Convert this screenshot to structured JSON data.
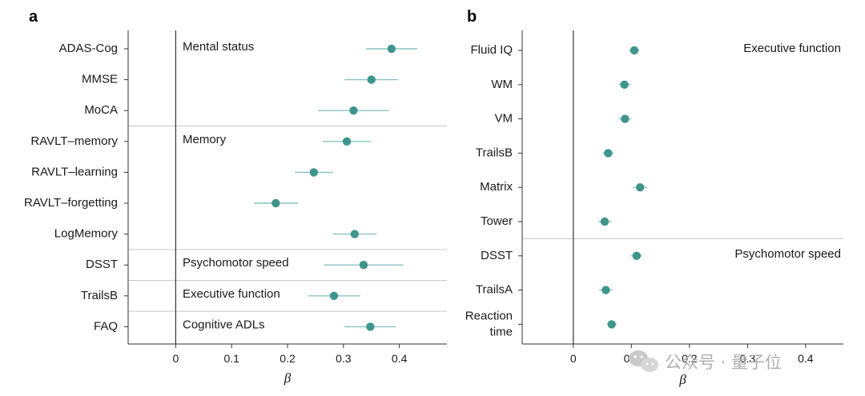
{
  "chart_data": [
    {
      "panel": "a",
      "type": "forest",
      "xlabel": "β",
      "xlim": [
        -0.085,
        0.485
      ],
      "xticks": [
        0,
        0.1,
        0.2,
        0.3,
        0.4
      ],
      "xtick_labels": [
        "0",
        "0.1",
        "0.2",
        "0.3",
        "0.4"
      ],
      "colors": {
        "point": "#3f958c",
        "ci": "#8cc4be",
        "axis": "#333333",
        "divider": "#c8c8c8"
      },
      "groups": [
        {
          "name": "Mental status",
          "rows": [
            0,
            1,
            2
          ]
        },
        {
          "name": "Memory",
          "rows": [
            3,
            4,
            5,
            6
          ]
        },
        {
          "name": "Psychomotor speed",
          "rows": [
            7
          ]
        },
        {
          "name": "Executive function",
          "rows": [
            8
          ]
        },
        {
          "name": "Cognitive ADLs",
          "rows": [
            9
          ]
        }
      ],
      "items": [
        {
          "label": "ADAS-Cog",
          "beta": 0.386,
          "low": 0.34,
          "high": 0.432
        },
        {
          "label": "MMSE",
          "beta": 0.35,
          "low": 0.302,
          "high": 0.398
        },
        {
          "label": "MoCA",
          "beta": 0.318,
          "low": 0.255,
          "high": 0.381
        },
        {
          "label": "RAVLT–memory",
          "beta": 0.306,
          "low": 0.263,
          "high": 0.349
        },
        {
          "label": "RAVLT–learning",
          "beta": 0.247,
          "low": 0.213,
          "high": 0.282
        },
        {
          "label": "RAVLT–forgetting",
          "beta": 0.179,
          "low": 0.14,
          "high": 0.219
        },
        {
          "label": "LogMemory",
          "beta": 0.32,
          "low": 0.281,
          "high": 0.359
        },
        {
          "label": "DSST",
          "beta": 0.336,
          "low": 0.265,
          "high": 0.407
        },
        {
          "label": "TrailsB",
          "beta": 0.283,
          "low": 0.237,
          "high": 0.33
        },
        {
          "label": "FAQ",
          "beta": 0.348,
          "low": 0.302,
          "high": 0.394
        }
      ]
    },
    {
      "panel": "b",
      "type": "forest",
      "xlabel": "β",
      "xlim": [
        -0.088,
        0.465
      ],
      "xticks": [
        0,
        0.1,
        0.2,
        0.3,
        0.4
      ],
      "xtick_labels": [
        "0",
        "0.1",
        "0.2",
        "0.3",
        "0.4"
      ],
      "colors": {
        "point": "#3f958c",
        "ci": "#8cc4be",
        "axis": "#333333",
        "divider": "#c8c8c8"
      },
      "groups": [
        {
          "name": "Executive function",
          "rows": [
            0,
            1,
            2,
            3,
            4,
            5
          ]
        },
        {
          "name": "Psychomotor speed",
          "rows": [
            6,
            7,
            8
          ]
        }
      ],
      "items": [
        {
          "label": "Fluid IQ",
          "beta": 0.105,
          "low": 0.096,
          "high": 0.114
        },
        {
          "label": "WM",
          "beta": 0.088,
          "low": 0.078,
          "high": 0.099
        },
        {
          "label": "VM",
          "beta": 0.089,
          "low": 0.078,
          "high": 0.1
        },
        {
          "label": "TrailsB",
          "beta": 0.06,
          "low": 0.05,
          "high": 0.07
        },
        {
          "label": "Matrix",
          "beta": 0.115,
          "low": 0.103,
          "high": 0.127
        },
        {
          "label": "Tower",
          "beta": 0.054,
          "low": 0.043,
          "high": 0.066
        },
        {
          "label": "DSST",
          "beta": 0.109,
          "low": 0.099,
          "high": 0.119
        },
        {
          "label": "TrailsA",
          "beta": 0.056,
          "low": 0.045,
          "high": 0.068
        },
        {
          "label": [
            "Reaction",
            "time"
          ],
          "beta": 0.066,
          "low": 0.058,
          "high": 0.075
        }
      ]
    }
  ],
  "watermark": {
    "text": "公众号 · 量子位",
    "icon": "wechat-icon"
  }
}
